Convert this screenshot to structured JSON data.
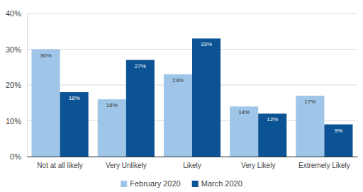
{
  "chart_data": {
    "type": "bar",
    "categories": [
      "Not at all likely",
      "Very Unlikely",
      "Likely",
      "Very Likely",
      "Extremely Likely"
    ],
    "series": [
      {
        "name": "February 2020",
        "color": "#9fc5e8",
        "values": [
          30,
          16,
          23,
          14,
          17
        ],
        "value_labels": [
          "30%",
          "16%",
          "23%",
          "14%",
          "17%"
        ]
      },
      {
        "name": "March 2020",
        "color": "#0b5394",
        "values": [
          18,
          27,
          33,
          12,
          9
        ],
        "value_labels": [
          "18%",
          "27%",
          "33%",
          "12%",
          "9%"
        ]
      }
    ],
    "ylim": [
      0,
      40
    ],
    "yticks": [
      {
        "value": 0,
        "label": "0%"
      },
      {
        "value": 10,
        "label": "10%"
      },
      {
        "value": 20,
        "label": "20%"
      },
      {
        "value": 30,
        "label": "30%"
      },
      {
        "value": 40,
        "label": "40%"
      }
    ],
    "grid": true,
    "legend": "bottom",
    "data_labels": true
  }
}
